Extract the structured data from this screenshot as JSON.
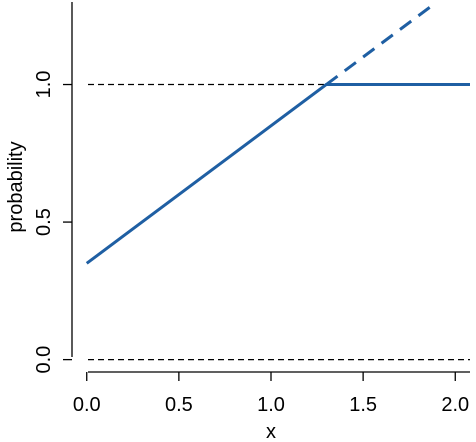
{
  "chart_data": {
    "type": "line",
    "xlabel": "x",
    "ylabel": "probability",
    "xlim": [
      -0.08,
      2.08
    ],
    "ylim": [
      -0.045,
      1.3
    ],
    "xticks": [
      {
        "value": 0.0,
        "label": "0.0"
      },
      {
        "value": 0.5,
        "label": "0.5"
      },
      {
        "value": 1.0,
        "label": "1.0"
      },
      {
        "value": 1.5,
        "label": "1.5"
      },
      {
        "value": 2.0,
        "label": "2.0"
      }
    ],
    "yticks": [
      {
        "value": 0.0,
        "label": "0.0"
      },
      {
        "value": 0.5,
        "label": "0.5"
      },
      {
        "value": 1.0,
        "label": "1.0"
      }
    ],
    "reference_lines": [
      {
        "y": 0.0,
        "style": "dashed",
        "color": "#000000"
      },
      {
        "y": 1.0,
        "style": "dashed",
        "color": "#000000"
      }
    ],
    "series": [
      {
        "style": "solid",
        "color": "#1f5fa3",
        "x": [
          0.0,
          1.3,
          2.08
        ],
        "y": [
          0.35,
          1.0,
          1.0
        ]
      },
      {
        "style": "dashed",
        "color": "#1f5fa3",
        "x": [
          1.3,
          1.9
        ],
        "y": [
          1.0,
          1.3
        ]
      }
    ]
  }
}
